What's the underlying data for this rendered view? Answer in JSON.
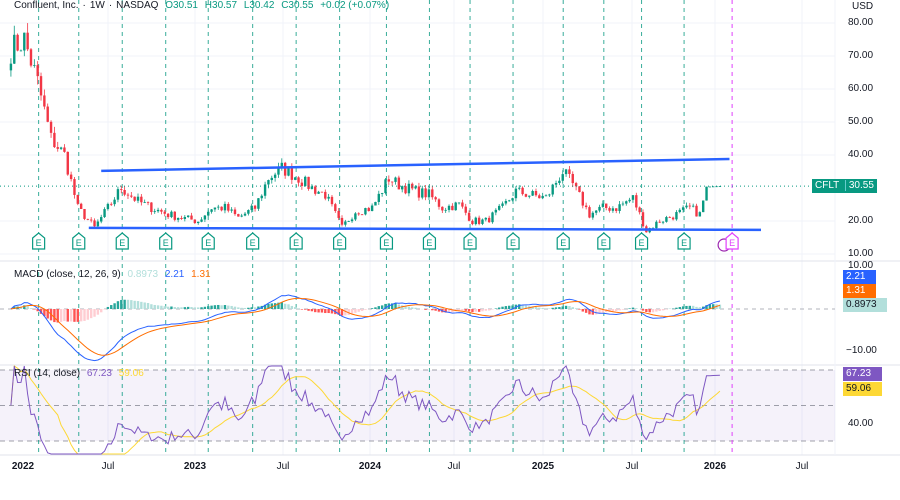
{
  "header": {
    "symbol_name": "Confluent, Inc.",
    "interval": "1W",
    "exchange": "NASDAQ",
    "open": "O30.51",
    "high": "H30.57",
    "low": "L30.42",
    "close": "C30.55",
    "change": "+0.02 (+0.07%)"
  },
  "price_axis": {
    "currency": "USD",
    "labels": [
      "80.00",
      "70.00",
      "60.00",
      "50.00",
      "40.00",
      "20.00",
      "10.00"
    ]
  },
  "price_badge": {
    "ticker": "CFLT",
    "value": "30.55"
  },
  "macd": {
    "title": "MACD (close, 12, 26, 9)",
    "hist": "0.8973",
    "macd": "2.21",
    "signal": "1.31",
    "axis_labels": [
      "10.00",
      "−10.00"
    ]
  },
  "rsi": {
    "title": "RSI (14, close)",
    "rsi": "67.23",
    "ma": "59.06",
    "axis_labels": [
      "40.00"
    ]
  },
  "time_axis": [
    "2022",
    "Jul",
    "2023",
    "Jul",
    "2024",
    "Jul",
    "2025",
    "Jul",
    "2026",
    "Jul"
  ],
  "colors": {
    "up": "#089981",
    "down": "#f23645",
    "trend": "#2962ff",
    "macd": "#2962ff",
    "signal": "#ff6d00",
    "rsi": "#7e57c2",
    "rsi_ma": "#fdd835",
    "earnings": "#089981",
    "future_earnings": "#e040fb"
  },
  "chart_data": {
    "type": "candlestick",
    "title": "Confluent, Inc. · 1W · NASDAQ",
    "ylabel": "USD",
    "ylim": [
      10,
      80
    ],
    "grid": true,
    "close_anchors": [
      [
        "2021-12-13",
        72
      ],
      [
        "2022-01-10",
        75
      ],
      [
        "2022-02-07",
        62
      ],
      [
        "2022-03-07",
        45
      ],
      [
        "2022-04-04",
        40
      ],
      [
        "2022-05-02",
        24
      ],
      [
        "2022-06-06",
        18
      ],
      [
        "2022-07-04",
        24
      ],
      [
        "2022-08-01",
        30
      ],
      [
        "2022-09-05",
        26
      ],
      [
        "2022-10-03",
        24
      ],
      [
        "2022-11-07",
        22
      ],
      [
        "2022-12-05",
        21
      ],
      [
        "2023-01-09",
        20
      ],
      [
        "2023-02-06",
        24
      ],
      [
        "2023-03-06",
        24
      ],
      [
        "2023-04-03",
        21
      ],
      [
        "2023-05-08",
        24
      ],
      [
        "2023-06-05",
        33
      ],
      [
        "2023-07-03",
        36
      ],
      [
        "2023-08-07",
        33
      ],
      [
        "2023-09-04",
        30
      ],
      [
        "2023-10-02",
        28
      ],
      [
        "2023-11-06",
        18
      ],
      [
        "2023-12-04",
        23
      ],
      [
        "2024-01-08",
        24
      ],
      [
        "2024-02-12",
        33
      ],
      [
        "2024-03-04",
        31
      ],
      [
        "2024-04-08",
        29
      ],
      [
        "2024-05-06",
        28
      ],
      [
        "2024-06-03",
        24
      ],
      [
        "2024-07-08",
        25
      ],
      [
        "2024-08-05",
        20
      ],
      [
        "2024-09-02",
        20
      ],
      [
        "2024-10-07",
        24
      ],
      [
        "2024-11-04",
        29
      ],
      [
        "2024-12-02",
        28
      ],
      [
        "2025-01-06",
        27
      ],
      [
        "2025-02-10",
        35
      ],
      [
        "2025-03-03",
        31
      ],
      [
        "2025-04-07",
        22
      ],
      [
        "2025-05-05",
        24
      ],
      [
        "2025-06-02",
        24
      ],
      [
        "2025-07-07",
        27
      ],
      [
        "2025-08-04",
        17
      ],
      [
        "2025-09-01",
        20
      ],
      [
        "2025-10-06",
        22
      ],
      [
        "2025-11-03",
        24
      ],
      [
        "2025-11-24",
        22
      ],
      [
        "2025-12-08",
        30.4
      ],
      [
        "2026-01-05",
        30.55
      ]
    ],
    "trendlines": [
      {
        "from": [
          "2022-06-20",
          35.2
        ],
        "to": [
          "2026-01-25",
          38.8
        ]
      },
      {
        "from": [
          "2022-05-25",
          17.9
        ],
        "to": [
          "2026-04-01",
          17.3
        ]
      }
    ],
    "earnings_dates": [
      "2022-02-09",
      "2022-05-04",
      "2022-08-03",
      "2022-11-02",
      "2023-01-30",
      "2023-05-03",
      "2023-08-02",
      "2023-11-01",
      "2024-02-07",
      "2024-05-07",
      "2024-07-31",
      "2024-10-29",
      "2025-02-11",
      "2025-05-07",
      "2025-07-25",
      "2025-10-22"
    ],
    "upcoming_earnings": "2026-02-10",
    "earnings_label": "E",
    "last_close": 30.55
  }
}
